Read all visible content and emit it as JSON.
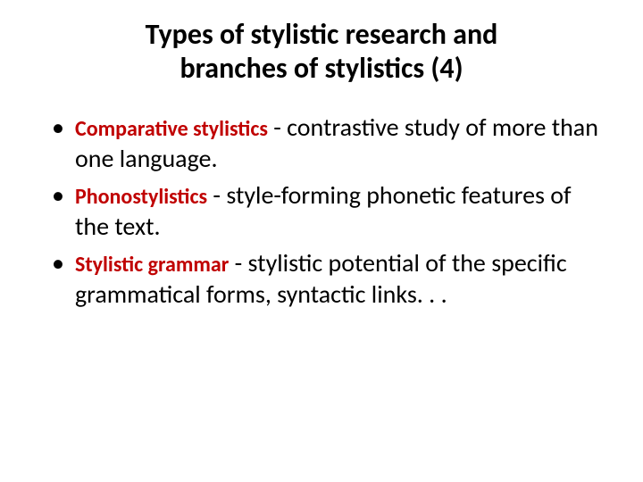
{
  "title_line1": "Types of stylistic research and",
  "title_line2": "branches of stylistics (4)",
  "items": [
    {
      "term": "Comparative stylistics",
      "separator": " - ",
      "desc": "contrastive study of more than one language."
    },
    {
      "term": "Phonostylistics",
      "separator": "  - ",
      "desc": "style-forming phonetic features of the text."
    },
    {
      "term": "Stylistic grammar",
      "separator": " - ",
      "desc": "stylistic potential of the specific grammatical forms, syntactic links. . ."
    }
  ],
  "colors": {
    "term_color": "#c00000",
    "text_color": "#000000",
    "background": "#ffffff"
  },
  "typography": {
    "title_fontsize": 32,
    "term_fontsize": 24,
    "body_fontsize": 28,
    "font_family": "Calibri"
  }
}
